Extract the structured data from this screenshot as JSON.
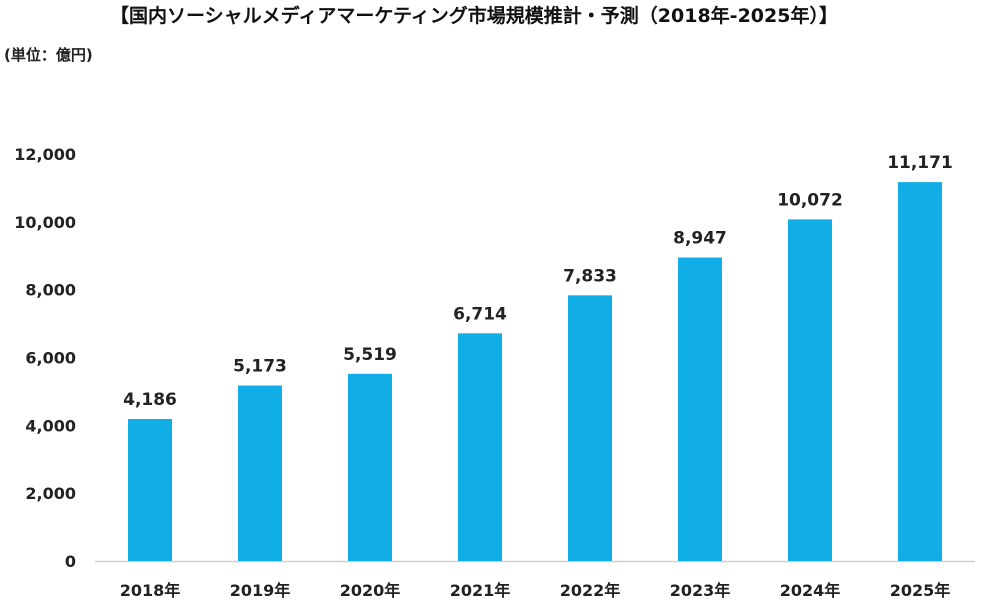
{
  "chart_data": {
    "type": "bar",
    "title": "【国内ソーシャルメディアマーケティング市場規模推計・予測（2018年-2025年）】",
    "unit_label": "(単位：億円)",
    "categories": [
      "2018年",
      "2019年",
      "2020年",
      "2021年",
      "2022年",
      "2023年",
      "2024年",
      "2025年"
    ],
    "values": [
      4186,
      5173,
      5519,
      6714,
      7833,
      8947,
      10072,
      11171
    ],
    "value_labels": [
      "4,186",
      "5,173",
      "5,519",
      "6,714",
      "7,833",
      "8,947",
      "10,072",
      "11,171"
    ],
    "y_ticks": [
      0,
      2000,
      4000,
      6000,
      8000,
      10000,
      12000
    ],
    "y_tick_labels": [
      "0",
      "2,000",
      "4,000",
      "6,000",
      "8,000",
      "10,000",
      "12,000"
    ],
    "ylim": [
      0,
      12000
    ],
    "grid": false,
    "bar_color": "#10ade6"
  }
}
